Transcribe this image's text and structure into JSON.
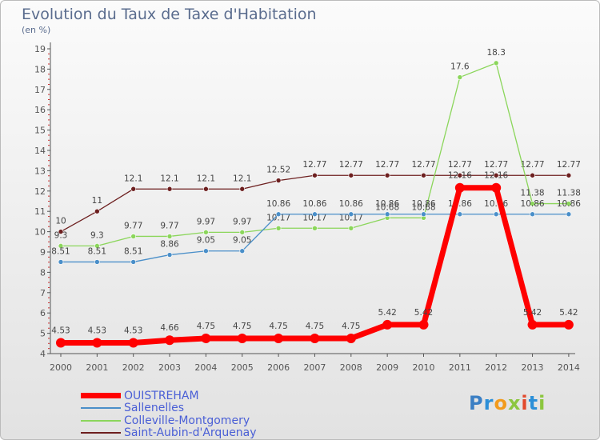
{
  "title": "Evolution du Taux de Taxe d'Habitation",
  "unit": "(en %)",
  "logo": [
    "P",
    "r",
    "o",
    "x",
    "i",
    "t",
    "i"
  ],
  "colors": {
    "logo_letters": [
      "#3b7fc4",
      "#2c8fd8",
      "#f29b1d",
      "#8cc63f",
      "#e2492c",
      "#2c8fd8",
      "#8cc63f"
    ],
    "axis": "#555555",
    "grid": "#cccccc",
    "label": "#555555"
  },
  "chart_data": {
    "type": "line",
    "title": "Evolution du Taux de Taxe d'Habitation",
    "ylabel": "(en %)",
    "xlabel": "",
    "x": [
      "2000",
      "2001",
      "2002",
      "2003",
      "2004",
      "2005",
      "2006",
      "2007",
      "2008",
      "2009",
      "2010",
      "2011",
      "2012",
      "2013",
      "2014"
    ],
    "ylim": [
      4,
      19
    ],
    "yticks": [
      "4",
      "5",
      "6",
      "7",
      "8",
      "9",
      "10",
      "11",
      "12",
      "13",
      "14",
      "15",
      "16",
      "17",
      "18",
      "19"
    ],
    "grid": false,
    "legend": "bottom-left",
    "series": [
      {
        "name": "Saint-Aubin-d'Arquenay",
        "color": "#6d1f1f",
        "values": [
          10,
          11,
          12.1,
          12.1,
          12.1,
          12.1,
          12.52,
          12.77,
          12.77,
          12.77,
          12.77,
          12.77,
          12.77,
          12.77,
          12.77
        ],
        "labels": [
          "10",
          "11",
          "12.1",
          "12.1",
          "12.1",
          "12.1",
          "12.52",
          "12.77",
          "12.77",
          "12.77",
          "12.77",
          "12.77",
          "12.77",
          "12.77",
          "12.77"
        ]
      },
      {
        "name": "Colleville-Montgomery",
        "color": "#8bd65b",
        "values": [
          9.3,
          9.3,
          9.77,
          9.77,
          9.97,
          9.97,
          10.17,
          10.17,
          10.17,
          10.68,
          10.68,
          17.6,
          18.3,
          11.38,
          11.38
        ],
        "labels": [
          "9.3",
          "9.3",
          "9.77",
          "9.77",
          "9.97",
          "9.97",
          "10.17",
          "10.17",
          "10.17",
          "10.68",
          "10.68",
          "17.6",
          "18.3",
          "11.38",
          "11.38"
        ]
      },
      {
        "name": "Sallenelles",
        "color": "#4a8fc9",
        "values": [
          8.51,
          8.51,
          8.51,
          8.86,
          9.05,
          9.05,
          10.86,
          10.86,
          10.86,
          10.86,
          10.86,
          10.86,
          10.86,
          10.86,
          10.86
        ],
        "labels": [
          "8.51",
          "8.51",
          "8.51",
          "8.86",
          "9.05",
          "9.05",
          "10.86",
          "10.86",
          "10.86",
          "10.86",
          "10.86",
          "10.86",
          "10.86",
          "10.86",
          "10.86"
        ]
      },
      {
        "name": "OUISTREHAM",
        "color": "#ff0000",
        "values": [
          4.53,
          4.53,
          4.53,
          4.66,
          4.75,
          4.75,
          4.75,
          4.75,
          4.75,
          5.42,
          5.42,
          12.16,
          12.16,
          5.42,
          5.42
        ],
        "labels": [
          "4.53",
          "4.53",
          "4.53",
          "4.66",
          "4.75",
          "4.75",
          "4.75",
          "4.75",
          "4.75",
          "5.42",
          "5.42",
          "12.16",
          "12.16",
          "5.42",
          "5.42"
        ]
      }
    ]
  },
  "legend_items": [
    {
      "label": "OUISTREHAM",
      "color": "#ff0000",
      "bold": true
    },
    {
      "label": "Sallenelles",
      "color": "#4a8fc9",
      "bold": false
    },
    {
      "label": "Colleville-Montgomery",
      "color": "#8bd65b",
      "bold": false
    },
    {
      "label": "Saint-Aubin-d'Arquenay",
      "color": "#6d1f1f",
      "bold": false
    }
  ]
}
